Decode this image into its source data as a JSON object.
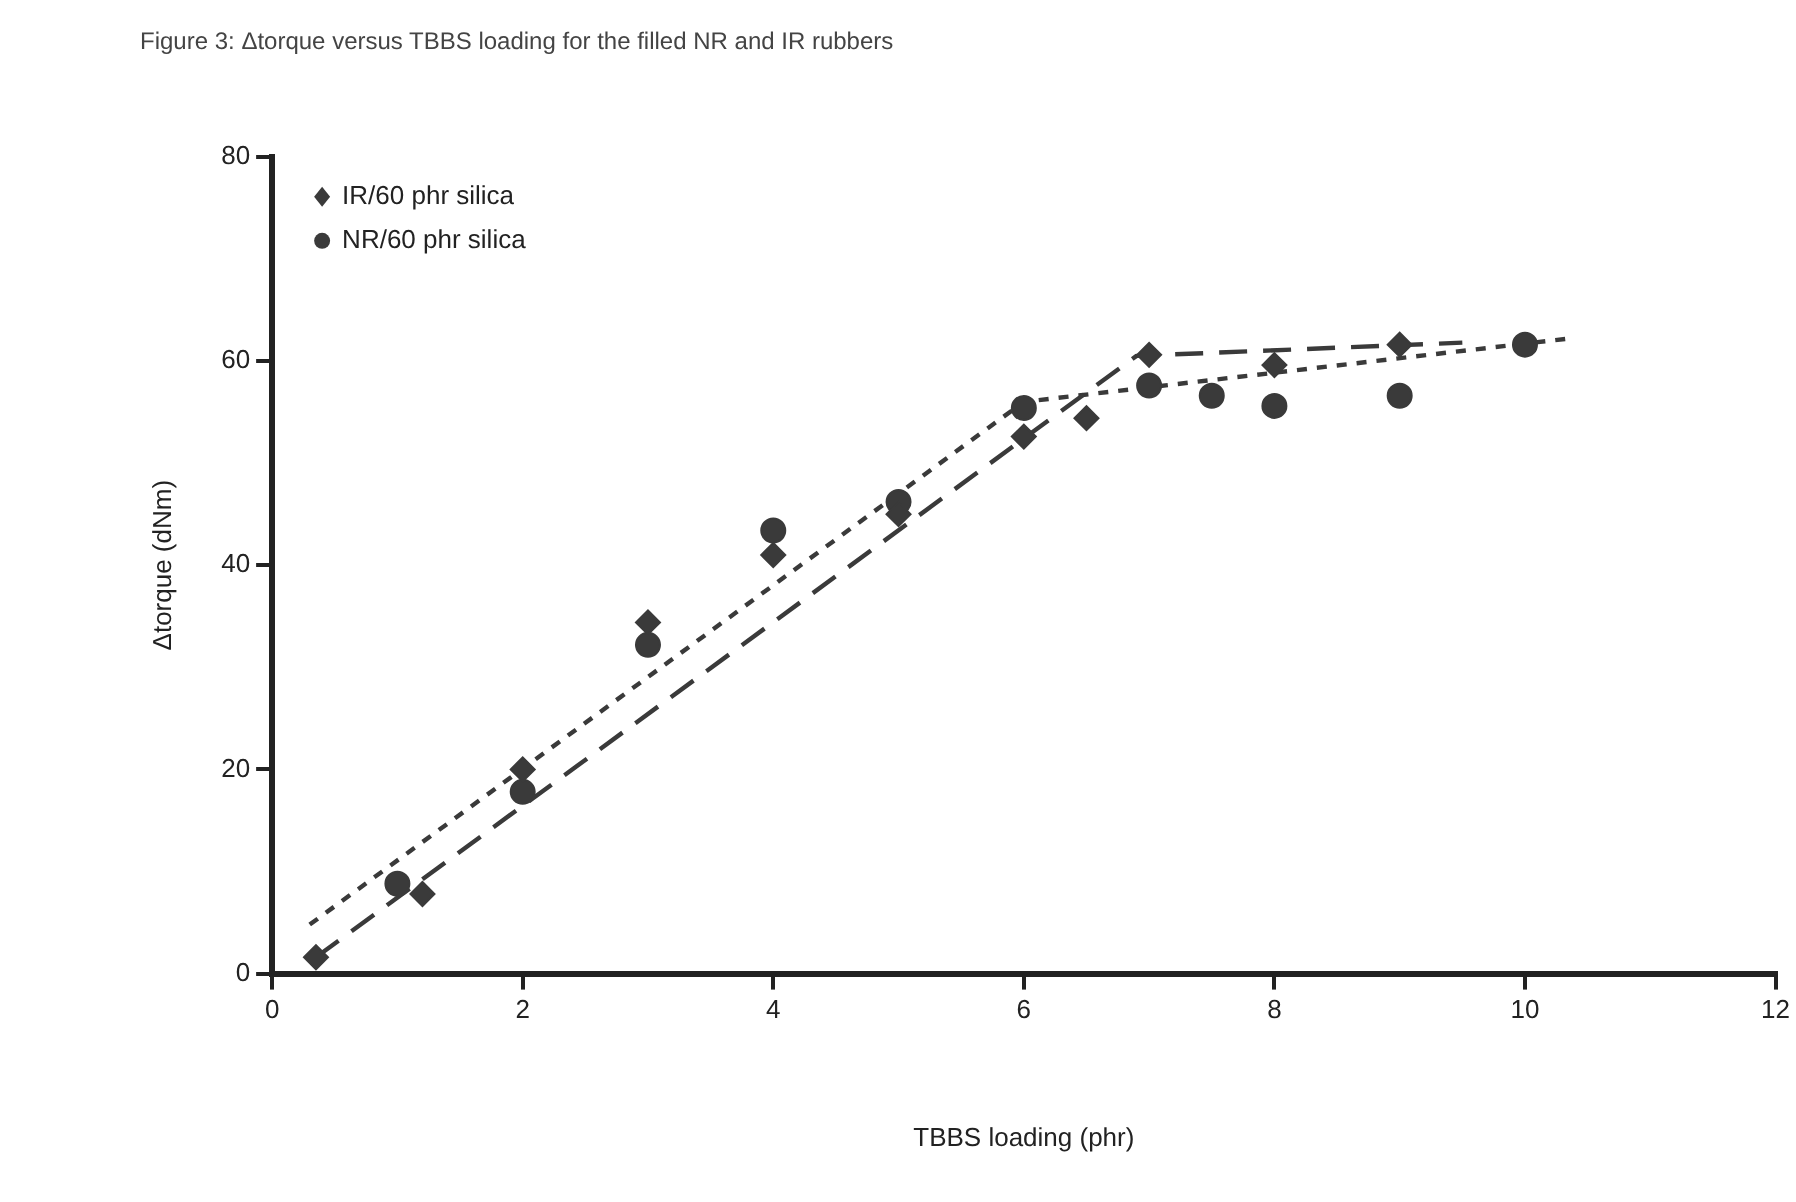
{
  "chart_data": {
    "type": "scatter",
    "title": "Figure 3: Δtorque versus TBBS loading for the filled NR and IR rubbers",
    "xlabel": "TBBS loading (phr)",
    "ylabel": "Δtorque (dNm)",
    "xlim": [
      0,
      12
    ],
    "xticks": [
      0,
      2,
      4,
      6,
      8,
      10,
      12
    ],
    "ylim": [
      0,
      80
    ],
    "yticks": [
      0,
      20,
      40,
      60,
      80
    ],
    "legend": "top left",
    "series": [
      {
        "name": "IR/60 phr silica",
        "color": "#3a3a3a",
        "marker": "diamond",
        "x": [
          0.35,
          1.2,
          2,
          3,
          4,
          5,
          6,
          6.5,
          7,
          8,
          9
        ],
        "values": [
          1.6,
          7.8,
          20,
          34.4,
          41,
          45,
          52.6,
          54.4,
          60.6,
          59.6,
          61.6
        ]
      },
      {
        "name": "NR/60 phr silica",
        "color": "#3a3a3a",
        "marker": "circle",
        "x": [
          1,
          2,
          3,
          4,
          5,
          6,
          7,
          7.5,
          8,
          9,
          10
        ],
        "values": [
          8.8,
          17.8,
          32.2,
          43.4,
          46.2,
          55.4,
          57.6,
          56.6,
          55.6,
          56.6,
          61.6
        ]
      },
      {
        "type": "line",
        "color": "#3a3a3a",
        "line_style": "dashed",
        "x": [
          0.35,
          6.9,
          9.5
        ],
        "values": [
          1.6,
          60.5,
          61.8
        ]
      },
      {
        "type": "line",
        "color": "#3a3a3a",
        "line_style": "dotted",
        "x": [
          0.3,
          6,
          10.35
        ],
        "values": [
          4.8,
          56,
          62.2
        ]
      }
    ]
  }
}
